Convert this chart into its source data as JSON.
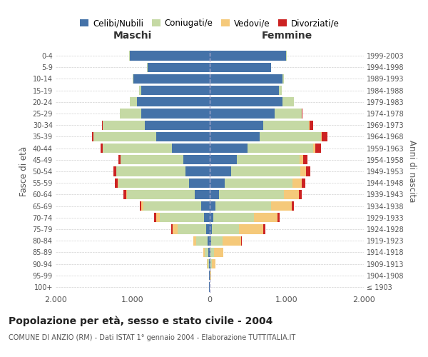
{
  "age_groups": [
    "100+",
    "95-99",
    "90-94",
    "85-89",
    "80-84",
    "75-79",
    "70-74",
    "65-69",
    "60-64",
    "55-59",
    "50-54",
    "45-49",
    "40-44",
    "35-39",
    "30-34",
    "25-29",
    "20-24",
    "15-19",
    "10-14",
    "5-9",
    "0-4"
  ],
  "birth_years": [
    "≤ 1903",
    "1904-1908",
    "1909-1913",
    "1914-1918",
    "1919-1923",
    "1924-1928",
    "1929-1933",
    "1934-1938",
    "1939-1943",
    "1944-1948",
    "1949-1953",
    "1954-1958",
    "1959-1963",
    "1964-1968",
    "1969-1973",
    "1974-1978",
    "1979-1983",
    "1984-1988",
    "1989-1993",
    "1994-1998",
    "1999-2003"
  ],
  "male_celibi": [
    5,
    8,
    12,
    18,
    28,
    45,
    75,
    115,
    195,
    270,
    315,
    345,
    490,
    690,
    840,
    890,
    940,
    890,
    990,
    810,
    1040
  ],
  "male_coniugati": [
    2,
    4,
    18,
    48,
    145,
    375,
    575,
    745,
    875,
    915,
    895,
    815,
    895,
    815,
    545,
    275,
    95,
    28,
    12,
    4,
    4
  ],
  "male_vedovi": [
    0,
    1,
    4,
    14,
    38,
    58,
    48,
    28,
    13,
    8,
    4,
    2,
    1,
    1,
    0,
    0,
    0,
    0,
    0,
    0,
    0
  ],
  "male_divorziati": [
    0,
    0,
    0,
    0,
    4,
    18,
    28,
    23,
    33,
    38,
    33,
    23,
    28,
    18,
    13,
    4,
    1,
    0,
    0,
    0,
    0
  ],
  "female_celibi": [
    1,
    4,
    8,
    12,
    18,
    32,
    48,
    78,
    118,
    198,
    278,
    348,
    495,
    645,
    695,
    845,
    945,
    895,
    945,
    795,
    995
  ],
  "female_coniugati": [
    1,
    4,
    18,
    48,
    145,
    345,
    525,
    715,
    845,
    875,
    895,
    815,
    845,
    795,
    595,
    345,
    145,
    38,
    18,
    4,
    4
  ],
  "female_vedovi": [
    2,
    8,
    48,
    118,
    248,
    318,
    308,
    268,
    198,
    118,
    78,
    48,
    28,
    13,
    8,
    4,
    1,
    0,
    0,
    0,
    0
  ],
  "female_divorziati": [
    0,
    0,
    0,
    1,
    4,
    23,
    28,
    28,
    38,
    48,
    58,
    58,
    78,
    78,
    48,
    13,
    4,
    1,
    0,
    0,
    0
  ],
  "color_celibi": "#4472a8",
  "color_coniugati": "#c5d9a4",
  "color_vedovi": "#f5c97a",
  "color_divorziati": "#cc2222",
  "title": "Popolazione per età, sesso e stato civile - 2004",
  "subtitle": "COMUNE DI ANZIO (RM) - Dati ISTAT 1° gennaio 2004 - Elaborazione TUTTITALIA.IT",
  "xlabel_left": "Maschi",
  "xlabel_right": "Femmine",
  "ylabel_left": "Fasce di età",
  "ylabel_right": "Anni di nascita",
  "xlim": 2000,
  "bg_color": "#ffffff",
  "grid_color": "#cccccc"
}
